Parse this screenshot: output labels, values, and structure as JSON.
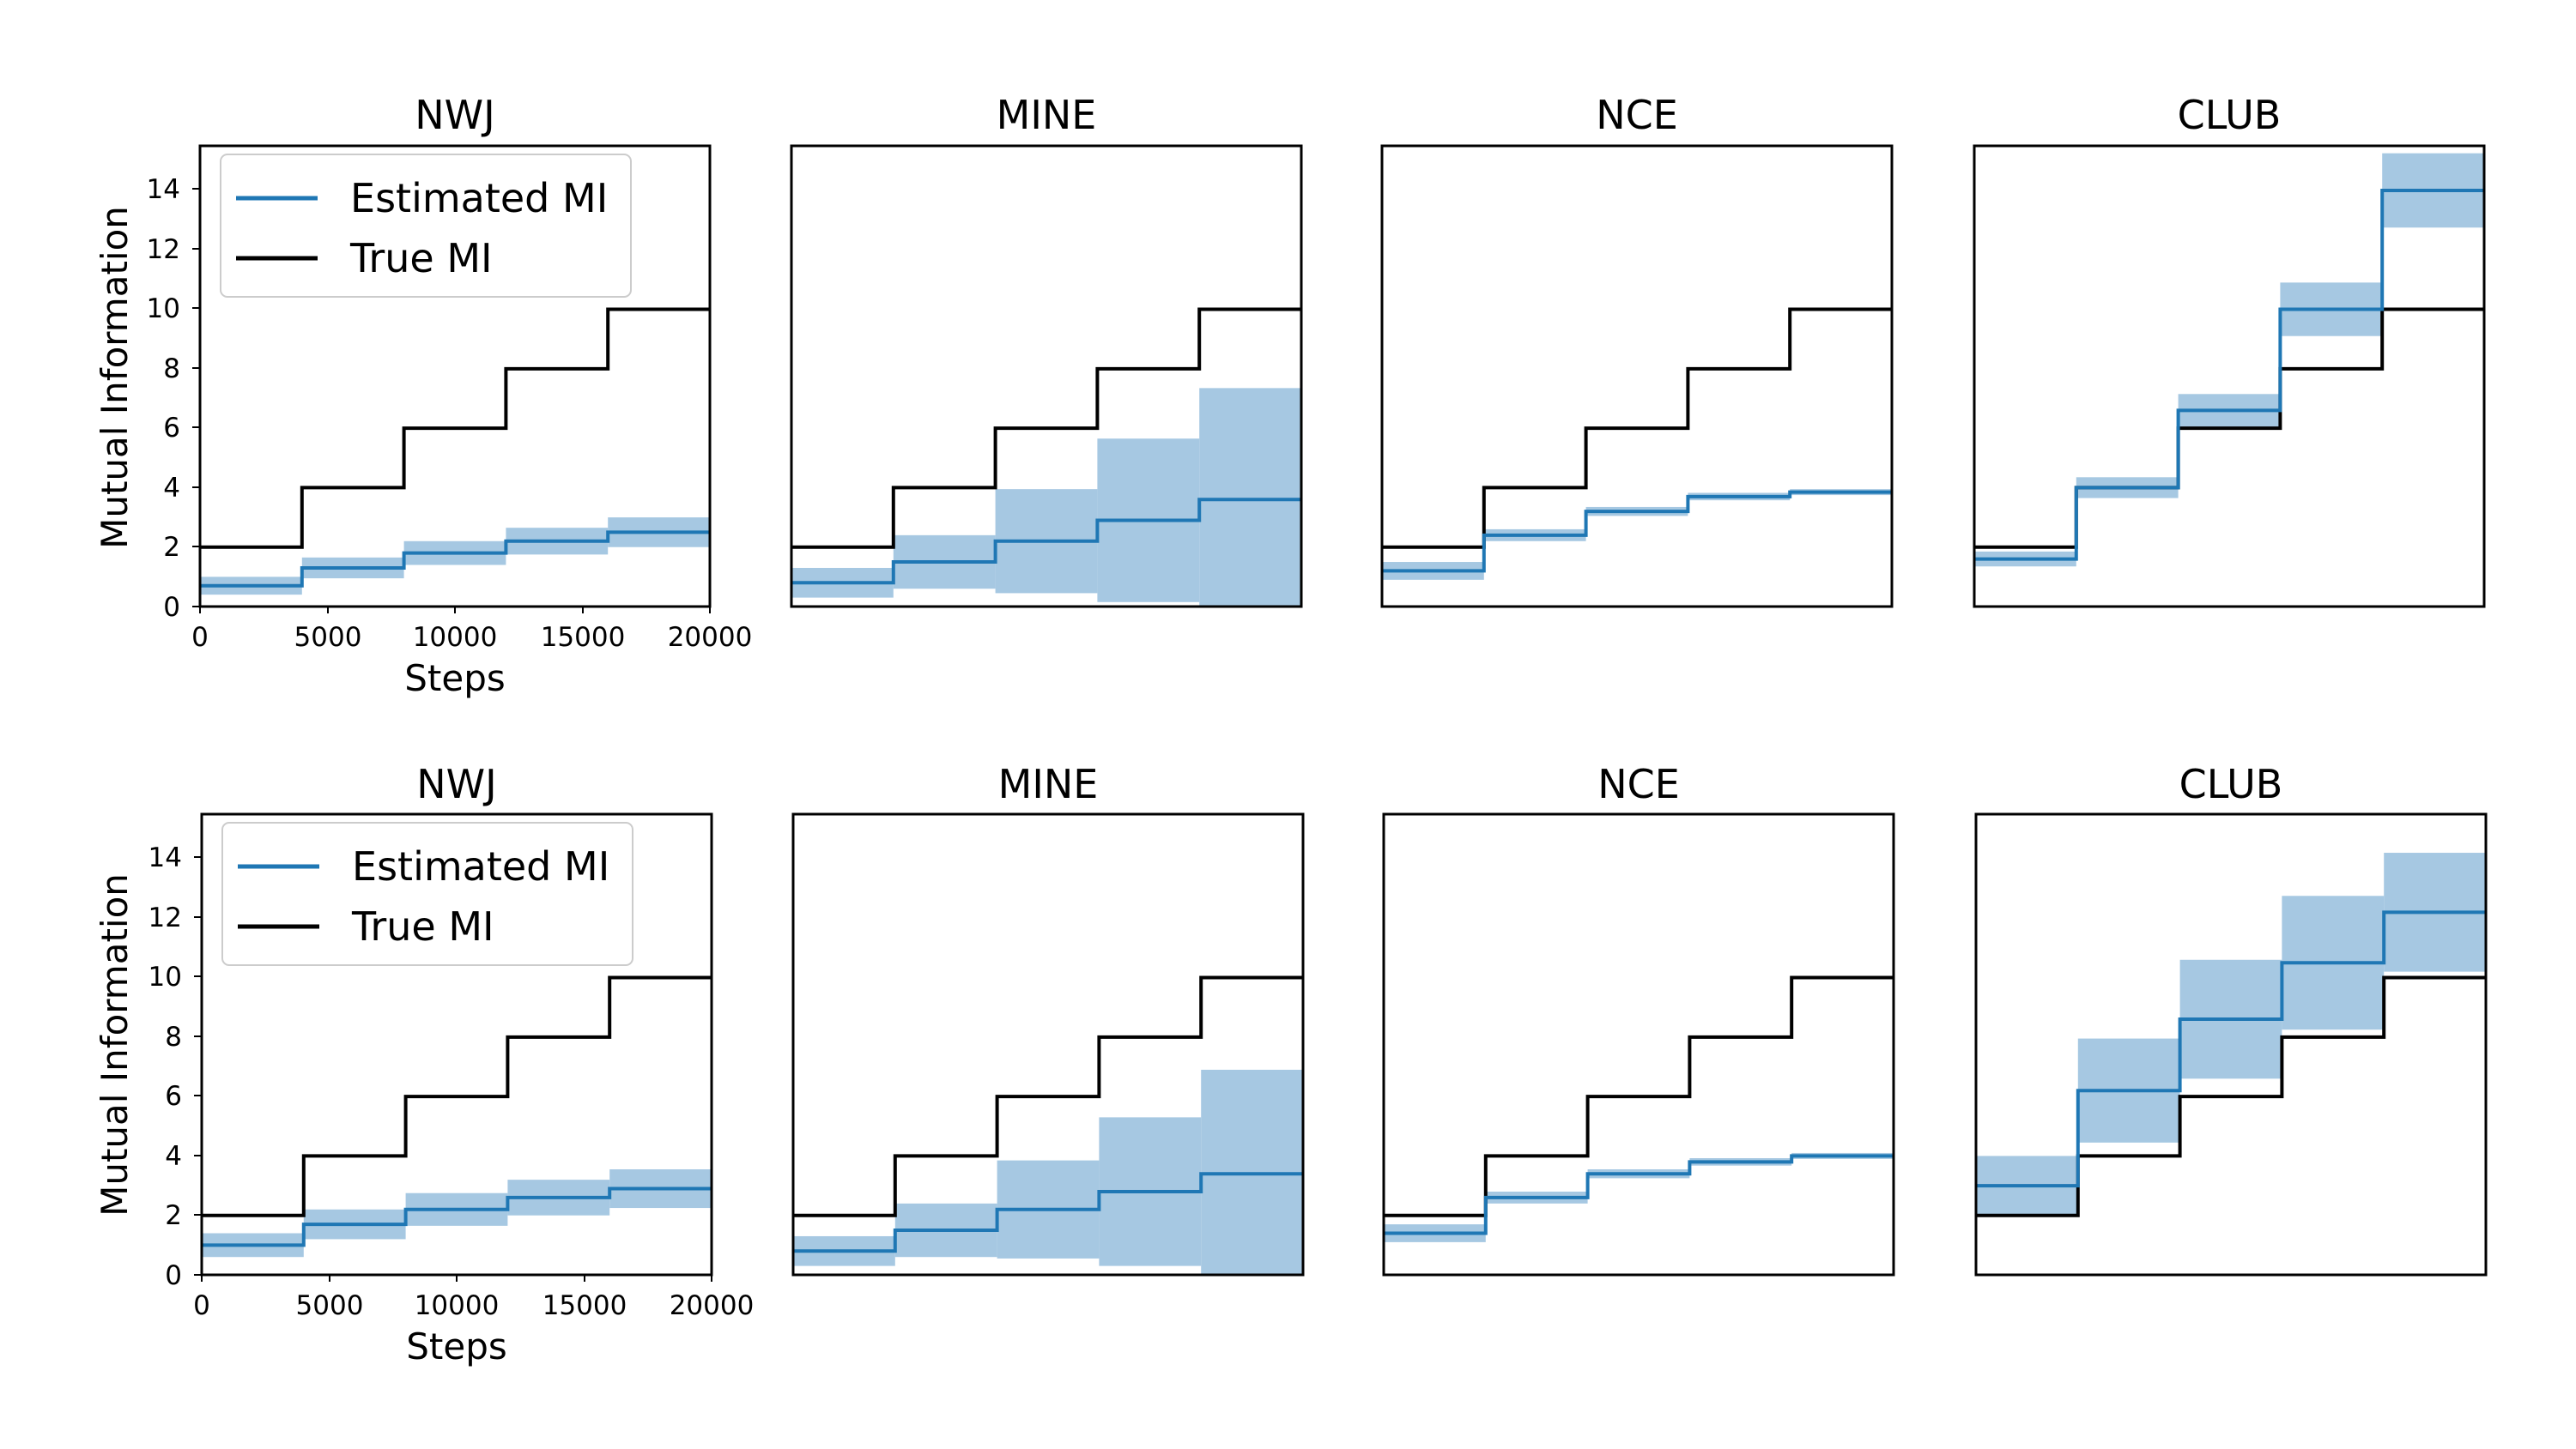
{
  "figure": {
    "rows": [
      {
        "panels": [
          {
            "title": "NWJ"
          },
          {
            "title": "MINE"
          },
          {
            "title": "NCE"
          },
          {
            "title": "CLUB"
          }
        ]
      },
      {
        "panels": [
          {
            "title": "NWJ"
          },
          {
            "title": "MINE"
          },
          {
            "title": "NCE"
          },
          {
            "title": "CLUB"
          }
        ]
      }
    ],
    "legend": {
      "estimated_label": "Estimated MI",
      "true_label": "True MI"
    },
    "ylabel": "Mutual Information",
    "xlabel": "Steps",
    "xticks": [
      "0",
      "5000",
      "10000",
      "15000",
      "20000"
    ],
    "yticks": [
      "0",
      "2",
      "4",
      "6",
      "8",
      "10",
      "12",
      "14"
    ]
  },
  "colors": {
    "estimated": "#1f77b4",
    "estimated_band": "#a6c8e2",
    "true": "#000000"
  },
  "chart_data": [
    {
      "type": "line",
      "title": "NWJ",
      "row": 1,
      "xlabel": "Steps",
      "ylabel": "Mutual Information",
      "xlim": [
        0,
        20000
      ],
      "ylim": [
        0,
        15.5
      ],
      "legend": "upper-left",
      "x": [
        0,
        4000,
        8000,
        12000,
        16000
      ],
      "series": [
        {
          "name": "Estimated MI",
          "values": [
            0.7,
            1.3,
            1.8,
            2.2,
            2.5
          ],
          "band": [
            0.6,
            0.7,
            0.8,
            0.9,
            1.0
          ]
        },
        {
          "name": "True MI",
          "values": [
            2,
            4,
            6,
            8,
            10
          ]
        }
      ]
    },
    {
      "type": "line",
      "title": "MINE",
      "row": 1,
      "xlim": [
        0,
        20000
      ],
      "ylim": [
        0,
        15.5
      ],
      "x": [
        0,
        4000,
        8000,
        12000,
        16000
      ],
      "series": [
        {
          "name": "Estimated MI",
          "values": [
            0.8,
            1.5,
            2.2,
            2.9,
            3.6
          ],
          "band": [
            1.0,
            1.8,
            3.5,
            5.5,
            7.5
          ]
        },
        {
          "name": "True MI",
          "values": [
            2,
            4,
            6,
            8,
            10
          ]
        }
      ]
    },
    {
      "type": "line",
      "title": "NCE",
      "row": 1,
      "xlim": [
        0,
        20000
      ],
      "ylim": [
        0,
        15.5
      ],
      "x": [
        0,
        4000,
        8000,
        12000,
        16000
      ],
      "series": [
        {
          "name": "Estimated MI",
          "values": [
            1.2,
            2.4,
            3.2,
            3.7,
            3.85
          ],
          "band": [
            0.6,
            0.4,
            0.3,
            0.25,
            0.2
          ]
        },
        {
          "name": "True MI",
          "values": [
            2,
            4,
            6,
            8,
            10
          ]
        }
      ]
    },
    {
      "type": "line",
      "title": "CLUB",
      "row": 1,
      "xlim": [
        0,
        20000
      ],
      "ylim": [
        0,
        15.5
      ],
      "x": [
        0,
        4000,
        8000,
        12000,
        16000
      ],
      "series": [
        {
          "name": "Estimated MI",
          "values": [
            1.6,
            4.0,
            6.6,
            10.0,
            14.0
          ],
          "band": [
            0.5,
            0.7,
            1.1,
            1.8,
            2.5
          ]
        },
        {
          "name": "True MI",
          "values": [
            2,
            4,
            6,
            8,
            10
          ]
        }
      ]
    },
    {
      "type": "line",
      "title": "NWJ",
      "row": 2,
      "xlabel": "Steps",
      "ylabel": "Mutual Information",
      "xlim": [
        0,
        20000
      ],
      "ylim": [
        0,
        15.5
      ],
      "legend": "upper-left",
      "x": [
        0,
        4000,
        8000,
        12000,
        16000
      ],
      "series": [
        {
          "name": "Estimated MI",
          "values": [
            1.0,
            1.7,
            2.2,
            2.6,
            2.9
          ],
          "band": [
            0.8,
            1.0,
            1.1,
            1.2,
            1.3
          ]
        },
        {
          "name": "True MI",
          "values": [
            2,
            4,
            6,
            8,
            10
          ]
        }
      ]
    },
    {
      "type": "line",
      "title": "MINE",
      "row": 2,
      "xlim": [
        0,
        20000
      ],
      "ylim": [
        0,
        15.5
      ],
      "x": [
        0,
        4000,
        8000,
        12000,
        16000
      ],
      "series": [
        {
          "name": "Estimated MI",
          "values": [
            0.8,
            1.5,
            2.2,
            2.8,
            3.4
          ],
          "band": [
            1.0,
            1.8,
            3.3,
            5.0,
            7.0
          ]
        },
        {
          "name": "True MI",
          "values": [
            2,
            4,
            6,
            8,
            10
          ]
        }
      ]
    },
    {
      "type": "line",
      "title": "NCE",
      "row": 2,
      "xlim": [
        0,
        20000
      ],
      "ylim": [
        0,
        15.5
      ],
      "x": [
        0,
        4000,
        8000,
        12000,
        16000
      ],
      "series": [
        {
          "name": "Estimated MI",
          "values": [
            1.4,
            2.6,
            3.4,
            3.8,
            4.0
          ],
          "band": [
            0.6,
            0.4,
            0.3,
            0.25,
            0.2
          ]
        },
        {
          "name": "True MI",
          "values": [
            2,
            4,
            6,
            8,
            10
          ]
        }
      ]
    },
    {
      "type": "line",
      "title": "CLUB",
      "row": 2,
      "xlim": [
        0,
        20000
      ],
      "ylim": [
        0,
        15.5
      ],
      "x": [
        0,
        4000,
        8000,
        12000,
        16000
      ],
      "series": [
        {
          "name": "Estimated MI",
          "values": [
            3.0,
            6.2,
            8.6,
            10.5,
            12.2
          ],
          "band": [
            2.0,
            3.5,
            4.0,
            4.5,
            4.0
          ]
        },
        {
          "name": "True MI",
          "values": [
            2,
            4,
            6,
            8,
            10
          ]
        }
      ]
    }
  ]
}
